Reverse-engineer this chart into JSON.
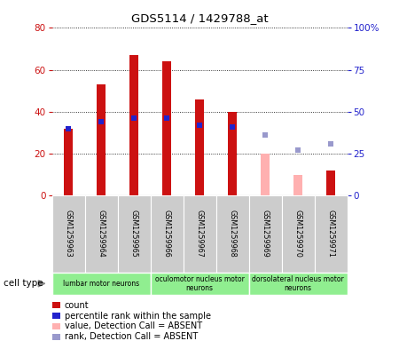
{
  "title": "GDS5114 / 1429788_at",
  "samples": [
    "GSM1259963",
    "GSM1259964",
    "GSM1259965",
    "GSM1259966",
    "GSM1259967",
    "GSM1259968",
    "GSM1259969",
    "GSM1259970",
    "GSM1259971"
  ],
  "count_values": [
    32,
    53,
    67,
    64,
    46,
    40,
    null,
    null,
    12
  ],
  "count_absent_values": [
    null,
    null,
    null,
    null,
    null,
    null,
    20,
    10,
    null
  ],
  "rank_values": [
    40,
    44,
    46,
    46,
    42,
    41,
    null,
    null,
    null
  ],
  "rank_absent_values": [
    null,
    null,
    null,
    null,
    null,
    null,
    36,
    27,
    31
  ],
  "count_color": "#cc1111",
  "count_absent_color": "#ffb0b0",
  "rank_color": "#2222cc",
  "rank_absent_color": "#9999cc",
  "ylim_left": [
    0,
    80
  ],
  "ylim_right": [
    0,
    100
  ],
  "cell_type_groups": [
    {
      "label": "lumbar motor neurons",
      "start": 0,
      "end": 3
    },
    {
      "label": "oculomotor nucleus motor\nneurons",
      "start": 3,
      "end": 6
    },
    {
      "label": "dorsolateral nucleus motor\nneurons",
      "start": 6,
      "end": 9
    }
  ],
  "cell_type_bg": "#90ee90",
  "sample_bg": "#cccccc",
  "legend_items": [
    {
      "label": "count",
      "color": "#cc1111"
    },
    {
      "label": "percentile rank within the sample",
      "color": "#2222cc"
    },
    {
      "label": "value, Detection Call = ABSENT",
      "color": "#ffb0b0"
    },
    {
      "label": "rank, Detection Call = ABSENT",
      "color": "#9999cc"
    }
  ],
  "yticks_left": [
    0,
    20,
    40,
    60,
    80
  ],
  "yticks_right": [
    0,
    25,
    50,
    75,
    100
  ],
  "ytick_labels_right": [
    "0",
    "25",
    "50",
    "75",
    "100%"
  ]
}
